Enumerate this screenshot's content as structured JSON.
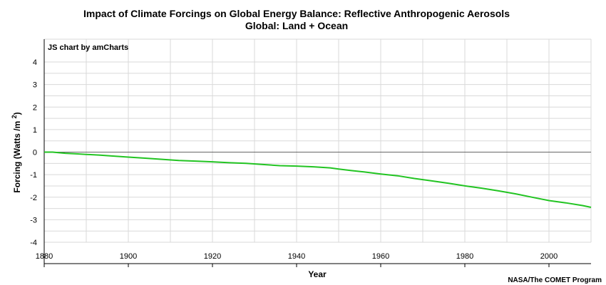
{
  "chart_data": {
    "type": "line",
    "title": "Impact of Climate Forcings on Global Energy Balance: Reflective Anthropogenic Aerosols",
    "subtitle": "Global: Land + Ocean",
    "xlabel": "Year",
    "ylabel": "Forcing (Watts /m2)",
    "xlim": [
      1880,
      2010
    ],
    "ylim": [
      -4,
      4
    ],
    "x_ticks": [
      "1880",
      "1900",
      "1920",
      "1940",
      "1960",
      "1980",
      "2000"
    ],
    "y_ticks": [
      "4",
      "3",
      "2",
      "1",
      "0",
      "-1",
      "-2",
      "-3",
      "-4"
    ],
    "grid": true,
    "series": [
      {
        "color": "#22c422",
        "points": [
          [
            1880,
            0.0
          ],
          [
            1882,
            0.0
          ],
          [
            1885,
            -0.05
          ],
          [
            1888,
            -0.08
          ],
          [
            1890,
            -0.1
          ],
          [
            1893,
            -0.13
          ],
          [
            1896,
            -0.17
          ],
          [
            1900,
            -0.22
          ],
          [
            1904,
            -0.27
          ],
          [
            1908,
            -0.32
          ],
          [
            1912,
            -0.37
          ],
          [
            1916,
            -0.4
          ],
          [
            1920,
            -0.43
          ],
          [
            1924,
            -0.47
          ],
          [
            1928,
            -0.5
          ],
          [
            1932,
            -0.55
          ],
          [
            1936,
            -0.6
          ],
          [
            1940,
            -0.62
          ],
          [
            1944,
            -0.65
          ],
          [
            1948,
            -0.7
          ],
          [
            1950,
            -0.75
          ],
          [
            1953,
            -0.82
          ],
          [
            1956,
            -0.88
          ],
          [
            1960,
            -0.97
          ],
          [
            1964,
            -1.05
          ],
          [
            1968,
            -1.17
          ],
          [
            1972,
            -1.27
          ],
          [
            1976,
            -1.38
          ],
          [
            1980,
            -1.5
          ],
          [
            1984,
            -1.6
          ],
          [
            1988,
            -1.72
          ],
          [
            1992,
            -1.85
          ],
          [
            1996,
            -2.0
          ],
          [
            2000,
            -2.15
          ],
          [
            2004,
            -2.25
          ],
          [
            2008,
            -2.37
          ],
          [
            2010,
            -2.45
          ]
        ]
      }
    ]
  },
  "watermark": "JS chart by amCharts",
  "credit": "NASA/The COMET Program"
}
